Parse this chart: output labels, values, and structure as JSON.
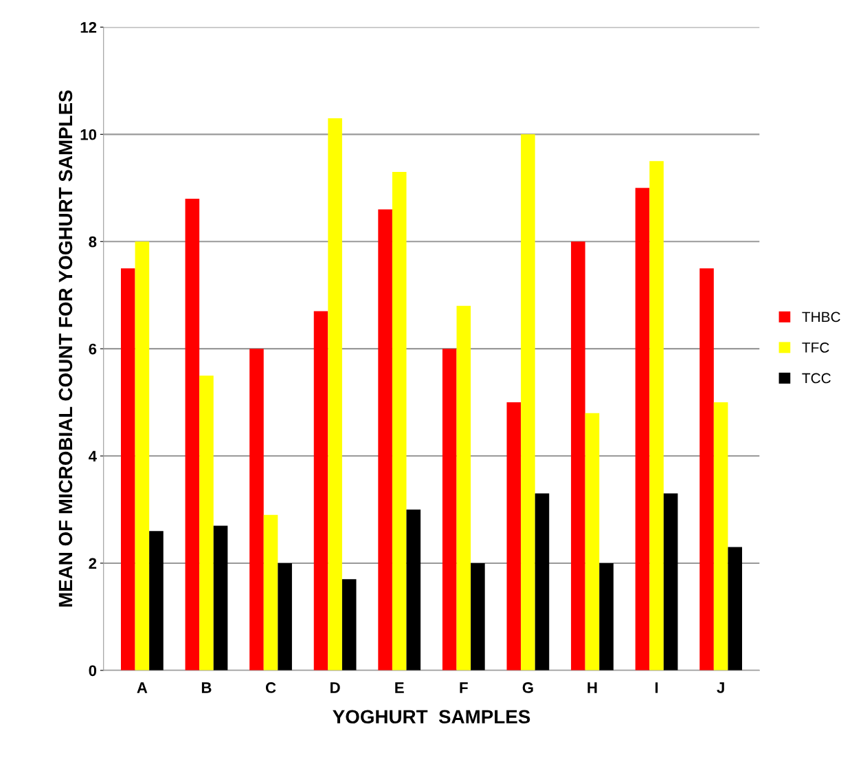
{
  "chart_data": {
    "type": "bar",
    "xlabel": "YOGHURT  SAMPLES",
    "ylabel": "MEAN OF MICROBIAL COUNT FOR YOGHURT SAMPLES",
    "categories": [
      "A",
      "B",
      "C",
      "D",
      "E",
      "F",
      "G",
      "H",
      "I",
      "J"
    ],
    "series": [
      {
        "name": "THBC",
        "color": "#ff0000",
        "values": [
          7.5,
          8.8,
          6.0,
          6.7,
          8.6,
          6.0,
          5.0,
          8.0,
          9.0,
          7.5
        ]
      },
      {
        "name": "TFC",
        "color": "#ffff00",
        "values": [
          8.0,
          5.5,
          2.9,
          10.3,
          9.3,
          6.8,
          10.0,
          4.8,
          9.5,
          5.0
        ]
      },
      {
        "name": "TCC",
        "color": "#000000",
        "values": [
          2.6,
          2.7,
          2.0,
          1.7,
          3.0,
          2.0,
          3.3,
          2.0,
          3.3,
          2.3
        ]
      }
    ],
    "ylim": [
      0,
      12
    ],
    "yticks": [
      0,
      2,
      4,
      6,
      8,
      10,
      12
    ],
    "grid": "y",
    "legend": "right"
  }
}
